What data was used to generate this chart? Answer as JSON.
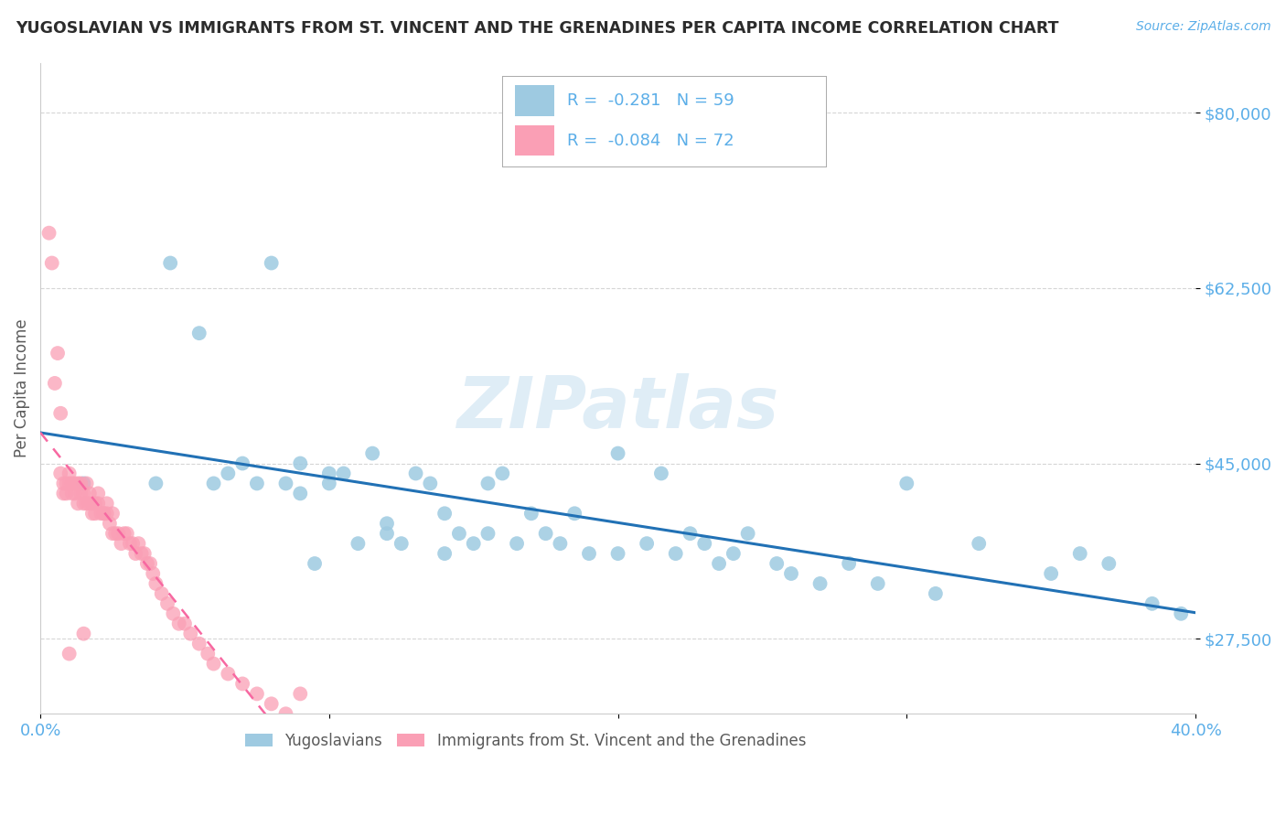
{
  "title": "YUGOSLAVIAN VS IMMIGRANTS FROM ST. VINCENT AND THE GRENADINES PER CAPITA INCOME CORRELATION CHART",
  "source": "Source: ZipAtlas.com",
  "ylabel": "Per Capita Income",
  "xlim": [
    0.0,
    0.4
  ],
  "ylim": [
    20000,
    85000
  ],
  "yticks": [
    27500,
    45000,
    62500,
    80000
  ],
  "ytick_labels": [
    "$27,500",
    "$45,000",
    "$62,500",
    "$80,000"
  ],
  "xticks": [
    0.0,
    0.1,
    0.2,
    0.3,
    0.4
  ],
  "xtick_labels": [
    "0.0%",
    "",
    "",
    "",
    "40.0%"
  ],
  "blue_R": "-0.281",
  "blue_N": "59",
  "pink_R": "-0.084",
  "pink_N": "72",
  "legend1_label": "Yugoslavians",
  "legend2_label": "Immigrants from St. Vincent and the Grenadines",
  "blue_color": "#9ecae1",
  "pink_color": "#fa9fb5",
  "blue_line_color": "#2171b5",
  "pink_line_color": "#f768a1",
  "watermark": "ZIPatlas",
  "title_color": "#2c2c2c",
  "axis_label_color": "#5a5a5a",
  "tick_color": "#5baee8",
  "grid_color": "#cccccc",
  "blue_scatter_x": [
    0.015,
    0.04,
    0.045,
    0.055,
    0.06,
    0.065,
    0.07,
    0.075,
    0.08,
    0.085,
    0.09,
    0.09,
    0.095,
    0.1,
    0.1,
    0.105,
    0.11,
    0.115,
    0.12,
    0.12,
    0.125,
    0.13,
    0.135,
    0.14,
    0.14,
    0.145,
    0.15,
    0.155,
    0.155,
    0.16,
    0.165,
    0.17,
    0.175,
    0.18,
    0.185,
    0.19,
    0.2,
    0.2,
    0.21,
    0.215,
    0.22,
    0.225,
    0.23,
    0.235,
    0.24,
    0.245,
    0.255,
    0.26,
    0.27,
    0.28,
    0.29,
    0.3,
    0.31,
    0.325,
    0.35,
    0.36,
    0.37,
    0.385,
    0.395
  ],
  "blue_scatter_y": [
    43000,
    43000,
    65000,
    58000,
    43000,
    44000,
    45000,
    43000,
    65000,
    43000,
    45000,
    42000,
    35000,
    44000,
    43000,
    44000,
    37000,
    46000,
    39000,
    38000,
    37000,
    44000,
    43000,
    40000,
    36000,
    38000,
    37000,
    38000,
    43000,
    44000,
    37000,
    40000,
    38000,
    37000,
    40000,
    36000,
    46000,
    36000,
    37000,
    44000,
    36000,
    38000,
    37000,
    35000,
    36000,
    38000,
    35000,
    34000,
    33000,
    35000,
    33000,
    43000,
    32000,
    37000,
    34000,
    36000,
    35000,
    31000,
    30000
  ],
  "pink_scatter_x": [
    0.003,
    0.004,
    0.005,
    0.006,
    0.007,
    0.007,
    0.008,
    0.008,
    0.009,
    0.009,
    0.01,
    0.01,
    0.011,
    0.011,
    0.012,
    0.012,
    0.013,
    0.013,
    0.014,
    0.014,
    0.015,
    0.015,
    0.016,
    0.016,
    0.017,
    0.017,
    0.018,
    0.018,
    0.019,
    0.019,
    0.02,
    0.02,
    0.021,
    0.022,
    0.022,
    0.023,
    0.023,
    0.024,
    0.025,
    0.025,
    0.026,
    0.027,
    0.028,
    0.029,
    0.03,
    0.031,
    0.032,
    0.033,
    0.034,
    0.035,
    0.036,
    0.037,
    0.038,
    0.039,
    0.04,
    0.042,
    0.044,
    0.046,
    0.048,
    0.05,
    0.052,
    0.055,
    0.058,
    0.06,
    0.065,
    0.07,
    0.075,
    0.08,
    0.085,
    0.09,
    0.01,
    0.015
  ],
  "pink_scatter_y": [
    68000,
    65000,
    53000,
    56000,
    44000,
    50000,
    43000,
    42000,
    42000,
    43000,
    43000,
    44000,
    43000,
    42000,
    42000,
    43000,
    41000,
    43000,
    42000,
    43000,
    42000,
    41000,
    41000,
    43000,
    41000,
    42000,
    40000,
    41000,
    40000,
    41000,
    42000,
    41000,
    40000,
    40000,
    40000,
    40000,
    41000,
    39000,
    38000,
    40000,
    38000,
    38000,
    37000,
    38000,
    38000,
    37000,
    37000,
    36000,
    37000,
    36000,
    36000,
    35000,
    35000,
    34000,
    33000,
    32000,
    31000,
    30000,
    29000,
    29000,
    28000,
    27000,
    26000,
    25000,
    24000,
    23000,
    22000,
    21000,
    20000,
    22000,
    26000,
    28000
  ]
}
